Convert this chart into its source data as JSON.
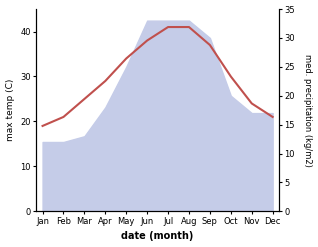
{
  "months": [
    "Jan",
    "Feb",
    "Mar",
    "Apr",
    "May",
    "Jun",
    "Jul",
    "Aug",
    "Sep",
    "Oct",
    "Nov",
    "Dec"
  ],
  "temp": [
    19,
    21,
    25,
    29,
    34,
    38,
    41,
    41,
    37,
    30,
    24,
    21
  ],
  "precip": [
    12,
    12,
    13,
    18,
    25,
    33,
    33,
    33,
    30,
    20,
    17,
    17
  ],
  "temp_color": "#c0504d",
  "precip_color": "#c5cce8",
  "temp_ylim": [
    0,
    45
  ],
  "precip_ylim": [
    0,
    35
  ],
  "temp_yticks": [
    0,
    10,
    20,
    30,
    40
  ],
  "precip_yticks": [
    0,
    5,
    10,
    15,
    20,
    25,
    30,
    35
  ],
  "xlabel": "date (month)",
  "ylabel_left": "max temp (C)",
  "ylabel_right": "med. precipitation (kg/m2)",
  "bg_color": "#ffffff"
}
